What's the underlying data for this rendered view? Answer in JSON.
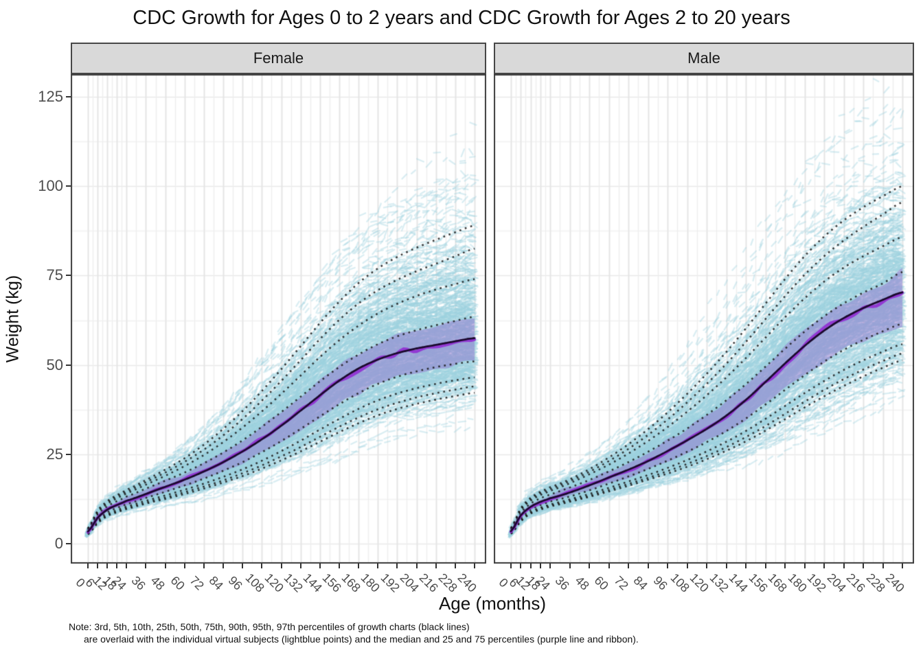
{
  "title": "CDC Growth for Ages 0 to 2 years and CDC Growth for Ages 2 to 20 years",
  "facets": [
    "Female",
    "Male"
  ],
  "axes": {
    "x": {
      "label": "Age (months)",
      "ticks": [
        0,
        6,
        12,
        18,
        24,
        36,
        48,
        60,
        72,
        84,
        96,
        108,
        120,
        132,
        144,
        156,
        168,
        180,
        192,
        204,
        216,
        228,
        240
      ]
    },
    "y": {
      "label": "Weight (kg)",
      "ticks": [
        0,
        25,
        50,
        75,
        100,
        125
      ],
      "range": [
        0,
        131
      ]
    }
  },
  "note": {
    "line1": "Note: 3rd, 5th, 10th, 25th, 50th, 75th, 90th, 95th, 97th percentiles of growth charts (black lines)",
    "line2": "are overlaid with the individual virtual subjects (lightblue points) and the median and 25 and 75 percentiles (purple line and ribbon)."
  },
  "colors": {
    "strip_bg": "#d9d9d9",
    "strip_border": "#464646",
    "panel_border": "#3c3c3c",
    "grid_major_v": "#e5e5e5",
    "grid_minor_v": "#eeeeee",
    "grid_h": "#e9e9e9",
    "points_lightblue": "#9ed1df",
    "ribbon_purple": "#9274cd",
    "line_purple": "#9130d2",
    "line_median_dark": "#1b0a2e",
    "percentile_dotted": "#1a1a1a",
    "tick_text": "#4d4d4d",
    "tick_mark": "#333333"
  },
  "chart_data": {
    "type": "line",
    "title": "CDC Growth for Ages 0 to 2 years and CDC Growth for Ages 2 to 20 years",
    "xlabel": "Age (months)",
    "ylabel": "Weight (kg)",
    "xlim": [
      0,
      240
    ],
    "ylim": [
      0,
      131
    ],
    "grid": true,
    "percentile_labels": [
      "3rd",
      "5th",
      "10th",
      "25th",
      "50th",
      "75th",
      "90th",
      "95th",
      "97th"
    ],
    "x": [
      0,
      6,
      12,
      18,
      24,
      36,
      48,
      60,
      72,
      84,
      96,
      108,
      120,
      132,
      144,
      156,
      168,
      180,
      192,
      204,
      216,
      228,
      240
    ],
    "panels": [
      {
        "name": "Female",
        "percentiles": {
          "p3": [
            2.6,
            5.7,
            7.7,
            8.8,
            9.7,
            11.2,
            12.5,
            13.9,
            15.4,
            17.1,
            18.9,
            21.0,
            23.3,
            25.8,
            28.5,
            31.2,
            33.7,
            35.9,
            37.7,
            39.1,
            40.3,
            41.3,
            42.2
          ],
          "p5": [
            2.7,
            5.9,
            7.9,
            9.0,
            10.0,
            11.5,
            12.9,
            14.4,
            16.0,
            17.7,
            19.7,
            21.9,
            24.4,
            27.0,
            29.9,
            32.7,
            35.3,
            37.6,
            39.4,
            40.9,
            42.1,
            43.1,
            44.0
          ],
          "p10": [
            2.9,
            6.2,
            8.2,
            9.4,
            10.4,
            12.0,
            13.5,
            15.1,
            16.8,
            18.7,
            20.8,
            23.2,
            25.9,
            28.8,
            31.9,
            34.9,
            37.7,
            40.1,
            42.0,
            43.5,
            44.7,
            45.7,
            46.5
          ],
          "p25": [
            3.1,
            6.6,
            8.8,
            10.0,
            11.1,
            12.8,
            14.5,
            16.3,
            18.2,
            20.4,
            22.8,
            25.6,
            28.7,
            32.1,
            35.6,
            39.0,
            42.1,
            44.7,
            46.7,
            48.2,
            49.4,
            50.3,
            51.0
          ],
          "p50": [
            3.4,
            7.2,
            9.5,
            10.8,
            12.0,
            13.9,
            15.9,
            17.9,
            20.2,
            22.8,
            25.8,
            29.2,
            33.0,
            37.2,
            41.5,
            45.6,
            49.0,
            51.5,
            53.3,
            54.6,
            55.6,
            56.6,
            57.5
          ],
          "p75": [
            3.8,
            8.0,
            10.4,
            11.9,
            13.2,
            15.4,
            17.6,
            19.9,
            22.5,
            25.5,
            28.9,
            32.7,
            36.8,
            41.1,
            45.4,
            49.4,
            52.9,
            55.8,
            58.0,
            59.7,
            61.1,
            62.3,
            63.5
          ],
          "p90": [
            4.0,
            8.6,
            11.1,
            12.7,
            14.1,
            16.5,
            19.0,
            21.7,
            24.8,
            28.4,
            32.5,
            37.0,
            41.9,
            47.0,
            52.2,
            56.9,
            61.0,
            64.4,
            67.1,
            69.3,
            71.1,
            72.6,
            74.0
          ],
          "p95": [
            4.2,
            8.9,
            11.5,
            13.2,
            14.6,
            17.2,
            19.9,
            22.9,
            26.3,
            30.3,
            34.9,
            40.0,
            45.5,
            51.3,
            57.2,
            62.6,
            67.2,
            70.9,
            73.8,
            76.2,
            78.3,
            80.4,
            82.5
          ],
          "p97": [
            4.3,
            9.2,
            11.9,
            13.6,
            15.1,
            17.8,
            20.7,
            23.9,
            27.7,
            32.1,
            37.1,
            42.7,
            48.8,
            55.2,
            61.7,
            67.7,
            72.9,
            77.0,
            80.2,
            82.8,
            85.0,
            87.1,
            89.0
          ]
        },
        "subjects_summary": {
          "q25": [
            3.1,
            6.6,
            8.8,
            10.0,
            11.1,
            12.8,
            14.5,
            16.3,
            18.2,
            20.4,
            22.8,
            25.6,
            28.7,
            32.1,
            35.6,
            39.0,
            42.1,
            44.7,
            46.7,
            48.2,
            49.4,
            50.3,
            51.0
          ],
          "median": [
            3.4,
            7.2,
            9.5,
            10.8,
            12.0,
            13.9,
            15.9,
            17.9,
            20.2,
            22.8,
            25.8,
            29.2,
            33.0,
            37.2,
            41.5,
            45.6,
            49.0,
            51.5,
            53.3,
            54.6,
            55.6,
            56.6,
            57.5
          ],
          "q75": [
            3.8,
            8.0,
            10.4,
            11.9,
            13.2,
            15.4,
            17.6,
            19.9,
            22.5,
            25.5,
            28.9,
            32.7,
            36.8,
            41.1,
            45.4,
            49.4,
            52.9,
            55.8,
            58.0,
            59.7,
            61.1,
            62.3,
            63.5
          ]
        }
      },
      {
        "name": "Male",
        "percentiles": {
          "p3": [
            2.7,
            6.2,
            8.4,
            9.5,
            10.4,
            11.7,
            13.1,
            14.6,
            16.2,
            17.9,
            19.6,
            21.5,
            23.6,
            26.0,
            28.6,
            31.6,
            34.8,
            38.1,
            41.2,
            44.1,
            46.8,
            49.2,
            51.3
          ],
          "p5": [
            2.8,
            6.4,
            8.6,
            9.8,
            10.7,
            12.0,
            13.4,
            15.0,
            16.7,
            18.4,
            20.3,
            22.3,
            24.5,
            27.0,
            29.8,
            32.9,
            36.3,
            39.7,
            43.0,
            46.0,
            48.7,
            51.1,
            53.2
          ],
          "p10": [
            2.9,
            6.7,
            8.9,
            10.1,
            11.0,
            12.4,
            13.9,
            15.6,
            17.4,
            19.2,
            21.2,
            23.4,
            25.8,
            28.5,
            31.5,
            34.9,
            38.5,
            42.1,
            45.5,
            48.6,
            51.3,
            53.7,
            55.8
          ],
          "p25": [
            3.2,
            7.2,
            9.5,
            10.8,
            11.8,
            13.2,
            14.9,
            16.8,
            18.8,
            20.9,
            23.2,
            25.7,
            28.4,
            31.5,
            35.0,
            38.9,
            43.0,
            47.1,
            50.9,
            54.2,
            57.0,
            59.4,
            61.5
          ],
          "p50": [
            3.5,
            7.9,
            10.3,
            11.7,
            12.7,
            14.3,
            16.3,
            18.5,
            20.7,
            23.1,
            25.9,
            28.9,
            32.1,
            35.8,
            40.2,
            45.2,
            50.4,
            55.3,
            59.6,
            63.1,
            65.9,
            68.2,
            70.3
          ],
          "p75": [
            3.9,
            8.6,
            11.2,
            12.7,
            13.8,
            15.7,
            17.8,
            20.2,
            22.8,
            25.7,
            28.8,
            32.2,
            36.0,
            40.1,
            44.6,
            49.5,
            54.5,
            59.3,
            63.6,
            67.2,
            70.2,
            72.8,
            76.0
          ],
          "p90": [
            4.2,
            9.3,
            12.0,
            13.6,
            14.8,
            16.9,
            19.4,
            22.1,
            25.2,
            28.7,
            32.6,
            36.9,
            41.5,
            46.5,
            51.9,
            57.6,
            63.3,
            68.6,
            73.3,
            77.2,
            80.4,
            83.2,
            85.8
          ],
          "p95": [
            4.3,
            9.6,
            12.4,
            14.1,
            15.3,
            17.5,
            20.1,
            23.1,
            26.5,
            30.4,
            34.7,
            39.5,
            44.7,
            50.3,
            56.4,
            62.8,
            69.2,
            75.2,
            80.4,
            84.8,
            88.6,
            92.1,
            95.5
          ],
          "p97": [
            4.4,
            9.9,
            12.8,
            14.5,
            15.8,
            18.0,
            20.8,
            24.1,
            27.8,
            32.0,
            36.7,
            41.9,
            47.5,
            53.6,
            60.2,
            67.1,
            74.0,
            80.4,
            85.9,
            90.4,
            94.1,
            97.2,
            100.0
          ]
        },
        "subjects_summary": {
          "q25": [
            3.2,
            7.2,
            9.5,
            10.8,
            11.8,
            13.2,
            14.9,
            16.8,
            18.8,
            20.9,
            23.2,
            25.7,
            28.4,
            31.5,
            35.0,
            38.9,
            43.0,
            47.1,
            50.9,
            54.2,
            57.0,
            59.4,
            61.5
          ],
          "median": [
            3.5,
            7.9,
            10.3,
            11.7,
            12.7,
            14.3,
            16.3,
            18.5,
            20.7,
            23.1,
            25.9,
            28.9,
            32.1,
            35.8,
            40.2,
            45.2,
            50.4,
            55.3,
            59.6,
            63.1,
            65.9,
            68.2,
            70.3
          ],
          "q75": [
            3.9,
            8.6,
            11.2,
            12.7,
            13.8,
            15.7,
            17.8,
            20.2,
            22.8,
            25.7,
            28.8,
            32.2,
            36.0,
            40.1,
            44.6,
            49.5,
            54.5,
            59.3,
            63.6,
            67.2,
            70.2,
            72.8,
            76.0
          ]
        }
      }
    ]
  },
  "style": {
    "seed": 42,
    "n_subjects_per_panel": 440,
    "point_alpha": 0.38,
    "ribbon_alpha": 0.5,
    "dotted_alpha": 0.85
  }
}
